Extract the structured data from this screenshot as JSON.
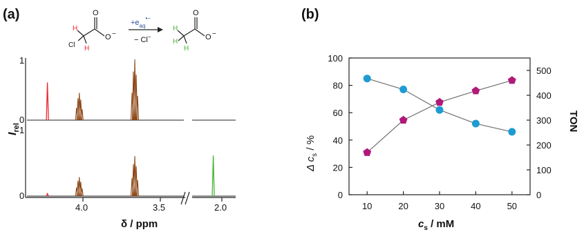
{
  "panel_a": {
    "label": "(a)",
    "scheme": {
      "reagent": "+e",
      "reagent_sub": "aq",
      "reagent_sup": "•−",
      "byproduct": "− Cl",
      "byproduct_sup": "−",
      "reactant_atoms": {
        "cl": "Cl",
        "h1": "H",
        "h2": "H",
        "o1": "O",
        "o2": "O",
        "o2_charge": "−"
      },
      "product_atoms": {
        "h1": "H",
        "h2": "H",
        "h3": "H",
        "o1": "O",
        "o2": "O",
        "o2_charge": "−"
      }
    },
    "y_label": "I",
    "y_label_sub": "rel",
    "x_label": "δ / ppm",
    "ticks": {
      "top_one": "1",
      "top_zero": "0",
      "bottom_one": "1",
      "bottom_zero": "0"
    },
    "x_tick_labels": [
      "4.0",
      "3.5",
      "2.0"
    ],
    "colors": {
      "chloroacetate_peak": "#e8262b",
      "acetate_peak": "#46b535",
      "other_peaks": "#8b4513",
      "baseline": "#222222"
    }
  },
  "panel_b": {
    "label": "(b)",
    "y_left_label": "Δ c",
    "y_left_sub": "s",
    "y_left_unit": " / %",
    "y_right_label": "TON",
    "x_label": "c",
    "x_sub": "s",
    "x_unit": " / mM",
    "colors": {
      "delta_cs": "#1f9bd4",
      "ton": "#b0197a",
      "line": "#707070"
    }
  },
  "chart_data": [
    {
      "type": "line",
      "title": "",
      "xlabel": "δ / ppm",
      "ylabel": "I_rel",
      "x_reversed": true,
      "xlim": [
        4.25,
        1.75
      ],
      "axis_break": [
        3.3,
        2.1
      ],
      "spectra": [
        {
          "ylim": [
            0,
            1
          ],
          "peaks": [
            {
              "ppm": 4.12,
              "intensity": 0.62,
              "assignment": "chloroacetate",
              "color": "chloroacetate_peak"
            },
            {
              "ppm": 3.93,
              "intensity": 0.45,
              "assignment": "other",
              "color": "other_peaks"
            },
            {
              "ppm": 3.6,
              "intensity": 1.0,
              "assignment": "other",
              "color": "other_peaks"
            }
          ]
        },
        {
          "ylim": [
            0,
            1
          ],
          "peaks": [
            {
              "ppm": 4.12,
              "intensity": 0.04,
              "assignment": "chloroacetate",
              "color": "chloroacetate_peak"
            },
            {
              "ppm": 3.93,
              "intensity": 0.3,
              "assignment": "other",
              "color": "other_peaks"
            },
            {
              "ppm": 3.6,
              "intensity": 0.63,
              "assignment": "other",
              "color": "other_peaks"
            },
            {
              "ppm": 1.93,
              "intensity": 0.64,
              "assignment": "acetate",
              "color": "acetate_peak"
            }
          ]
        }
      ]
    },
    {
      "type": "line",
      "title": "",
      "x": [
        10,
        20,
        30,
        40,
        50
      ],
      "x_ticks": [
        10,
        20,
        30,
        40,
        50
      ],
      "xlim": [
        5,
        55
      ],
      "grid": false,
      "series": [
        {
          "axis": "left",
          "marker": "circle",
          "values": [
            85,
            77,
            62,
            52,
            46
          ]
        },
        {
          "axis": "right",
          "marker": "pentagon",
          "values": [
            170,
            300,
            372,
            418,
            460
          ]
        }
      ],
      "ylim_left": [
        0,
        100
      ],
      "y_left_ticks": [
        0,
        20,
        40,
        60,
        80,
        100
      ],
      "ylim_right": [
        0,
        550
      ],
      "y_right_ticks": [
        0,
        100,
        200,
        300,
        400,
        500
      ]
    }
  ]
}
